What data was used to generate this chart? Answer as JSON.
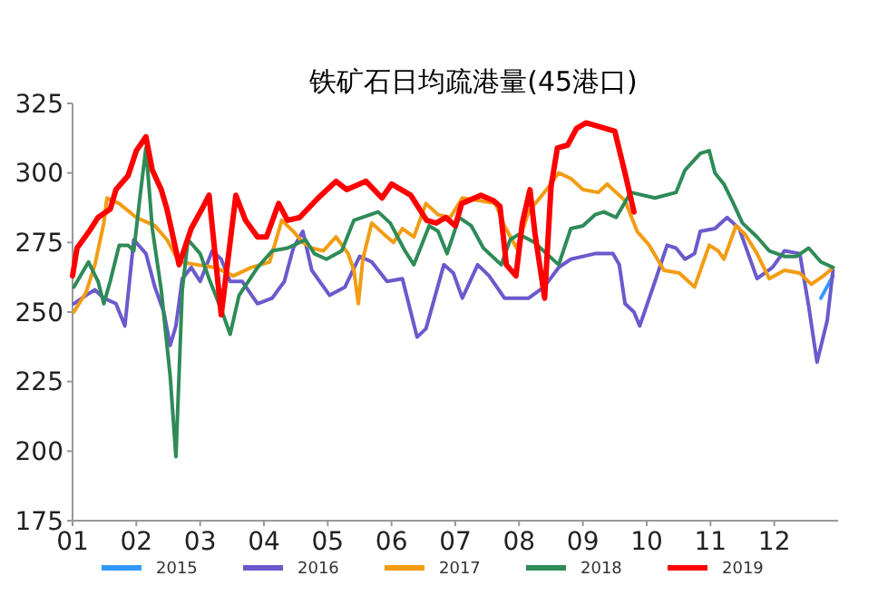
{
  "chart_data": {
    "type": "line",
    "title": "铁矿石日均疏港量(45港口)",
    "legend": "bottom",
    "xlim": [
      1,
      13
    ],
    "ylim": [
      175,
      325
    ],
    "yticks": [
      175,
      200,
      225,
      250,
      275,
      300,
      325
    ],
    "xticks": [
      {
        "value": 1,
        "label": "01"
      },
      {
        "value": 2,
        "label": "02"
      },
      {
        "value": 3,
        "label": "03"
      },
      {
        "value": 4,
        "label": "04"
      },
      {
        "value": 5,
        "label": "05"
      },
      {
        "value": 6,
        "label": "06"
      },
      {
        "value": 7,
        "label": "07"
      },
      {
        "value": 8,
        "label": "08"
      },
      {
        "value": 9,
        "label": "09"
      },
      {
        "value": 10,
        "label": "10"
      },
      {
        "value": 11,
        "label": "11"
      },
      {
        "value": 12,
        "label": "12"
      }
    ],
    "series": [
      {
        "name": "2015",
        "color": "#3399ff",
        "x": [
          12.73,
          12.92
        ],
        "values": [
          255,
          263
        ]
      },
      {
        "name": "2016",
        "color": "#6a5acd",
        "x": [
          1.02,
          1.21,
          1.35,
          1.49,
          1.68,
          1.82,
          1.96,
          2.15,
          2.29,
          2.43,
          2.53,
          2.62,
          2.72,
          2.86,
          3.0,
          3.19,
          3.33,
          3.47,
          3.66,
          3.9,
          4.13,
          4.32,
          4.46,
          4.61,
          4.75,
          5.03,
          5.27,
          5.5,
          5.69,
          5.93,
          6.17,
          6.4,
          6.54,
          6.82,
          6.97,
          7.11,
          7.35,
          7.53,
          7.77,
          8.15,
          8.39,
          8.62,
          8.81,
          9.19,
          9.47,
          9.57,
          9.66,
          9.8,
          9.89,
          10.13,
          10.32,
          10.46,
          10.6,
          10.75,
          10.84,
          11.07,
          11.26,
          11.45,
          11.73,
          11.97,
          12.16,
          12.4,
          12.54,
          12.67,
          12.83,
          12.92
        ],
        "values": [
          253,
          256,
          258,
          255,
          253,
          245,
          276,
          271,
          259,
          250,
          238,
          245,
          262,
          266,
          261,
          272,
          269,
          261,
          261,
          253,
          255,
          261,
          273,
          279,
          265,
          256,
          259,
          270,
          268,
          261,
          262,
          241,
          244,
          267,
          264,
          255,
          267,
          263,
          255,
          255,
          259,
          266,
          269,
          271,
          271,
          267,
          253,
          250,
          245,
          261,
          274,
          273,
          269,
          271,
          279,
          280,
          284,
          280,
          262,
          266,
          272,
          271,
          252,
          232,
          247,
          265
        ]
      },
      {
        "name": "2017",
        "color": "#f39c12",
        "x": [
          1.02,
          1.21,
          1.35,
          1.49,
          1.54,
          1.73,
          2.0,
          2.29,
          2.48,
          2.67,
          2.95,
          3.24,
          3.52,
          3.8,
          4.09,
          4.28,
          4.46,
          4.61,
          4.75,
          4.93,
          5.13,
          5.32,
          5.41,
          5.48,
          5.55,
          5.69,
          5.88,
          6.03,
          6.17,
          6.35,
          6.54,
          6.73,
          6.92,
          7.11,
          7.39,
          7.63,
          7.77,
          7.96,
          8.15,
          8.43,
          8.62,
          8.81,
          9.0,
          9.24,
          9.38,
          9.52,
          9.66,
          9.85,
          10.04,
          10.27,
          10.51,
          10.75,
          10.98,
          11.12,
          11.21,
          11.4,
          11.54,
          11.73,
          11.92,
          12.16,
          12.4,
          12.58,
          12.77,
          12.92
        ],
        "values": [
          250,
          257,
          267,
          282,
          291,
          289,
          284,
          281,
          276,
          268,
          267,
          266,
          263,
          266,
          268,
          283,
          279,
          275,
          273,
          272,
          277,
          271,
          265,
          253,
          269,
          282,
          278,
          275,
          280,
          277,
          289,
          285,
          284,
          291,
          290,
          289,
          281,
          273,
          286,
          294,
          300,
          298,
          294,
          293,
          296,
          293,
          290,
          279,
          274,
          265,
          264,
          259,
          274,
          272,
          269,
          281,
          278,
          271,
          262,
          265,
          264,
          260,
          263,
          266
        ]
      },
      {
        "name": "2018",
        "color": "#2e8b57",
        "x": [
          1.02,
          1.25,
          1.4,
          1.49,
          1.59,
          1.73,
          1.87,
          1.96,
          2.06,
          2.15,
          2.25,
          2.39,
          2.53,
          2.62,
          2.72,
          2.81,
          3.0,
          3.14,
          3.33,
          3.47,
          3.61,
          3.9,
          4.13,
          4.37,
          4.65,
          4.79,
          4.98,
          5.22,
          5.41,
          5.79,
          5.98,
          6.21,
          6.35,
          6.59,
          6.73,
          6.87,
          7.06,
          7.25,
          7.44,
          7.72,
          7.86,
          8.0,
          8.24,
          8.43,
          8.62,
          8.81,
          9.0,
          9.19,
          9.33,
          9.52,
          9.75,
          10.13,
          10.46,
          10.6,
          10.84,
          10.98,
          11.07,
          11.21,
          11.36,
          11.5,
          11.73,
          11.92,
          12.16,
          12.35,
          12.54,
          12.73,
          12.92
        ],
        "values": [
          259,
          268,
          261,
          253,
          261,
          274,
          274,
          272,
          292,
          309,
          280,
          258,
          227,
          198,
          258,
          276,
          271,
          262,
          251,
          242,
          256,
          266,
          272,
          273,
          276,
          271,
          269,
          272,
          283,
          286,
          282,
          272,
          267,
          281,
          279,
          271,
          284,
          281,
          273,
          267,
          276,
          278,
          275,
          271,
          267,
          280,
          281,
          285,
          286,
          284,
          293,
          291,
          293,
          301,
          307,
          308,
          300,
          296,
          289,
          282,
          277,
          272,
          270,
          270,
          273,
          268,
          266
        ]
      },
      {
        "name": "2019",
        "color": "#ff0000",
        "x": [
          1.0,
          1.07,
          1.26,
          1.4,
          1.59,
          1.68,
          1.87,
          2.0,
          2.15,
          2.25,
          2.39,
          2.48,
          2.67,
          2.86,
          3.05,
          3.14,
          3.33,
          3.56,
          3.71,
          3.9,
          4.04,
          4.23,
          4.37,
          4.56,
          4.85,
          5.13,
          5.3,
          5.6,
          5.85,
          6.0,
          6.3,
          6.55,
          6.7,
          6.85,
          7.0,
          7.1,
          7.4,
          7.6,
          7.7,
          7.8,
          7.95,
          8.05,
          8.17,
          8.25,
          8.4,
          8.5,
          8.6,
          8.76,
          8.9,
          9.05,
          9.5,
          9.67,
          9.8
        ],
        "values": [
          263,
          273,
          279,
          284,
          287,
          294,
          299,
          308,
          313,
          301,
          294,
          287,
          267,
          280,
          288,
          292,
          249,
          292,
          283,
          277,
          277,
          289,
          283,
          284,
          291,
          297,
          294,
          297,
          291,
          296,
          292,
          283,
          282,
          284,
          281,
          289,
          292,
          290,
          288,
          267,
          263,
          282,
          294,
          278,
          255,
          295,
          309,
          310,
          316,
          318,
          315,
          299,
          286
        ]
      }
    ]
  }
}
